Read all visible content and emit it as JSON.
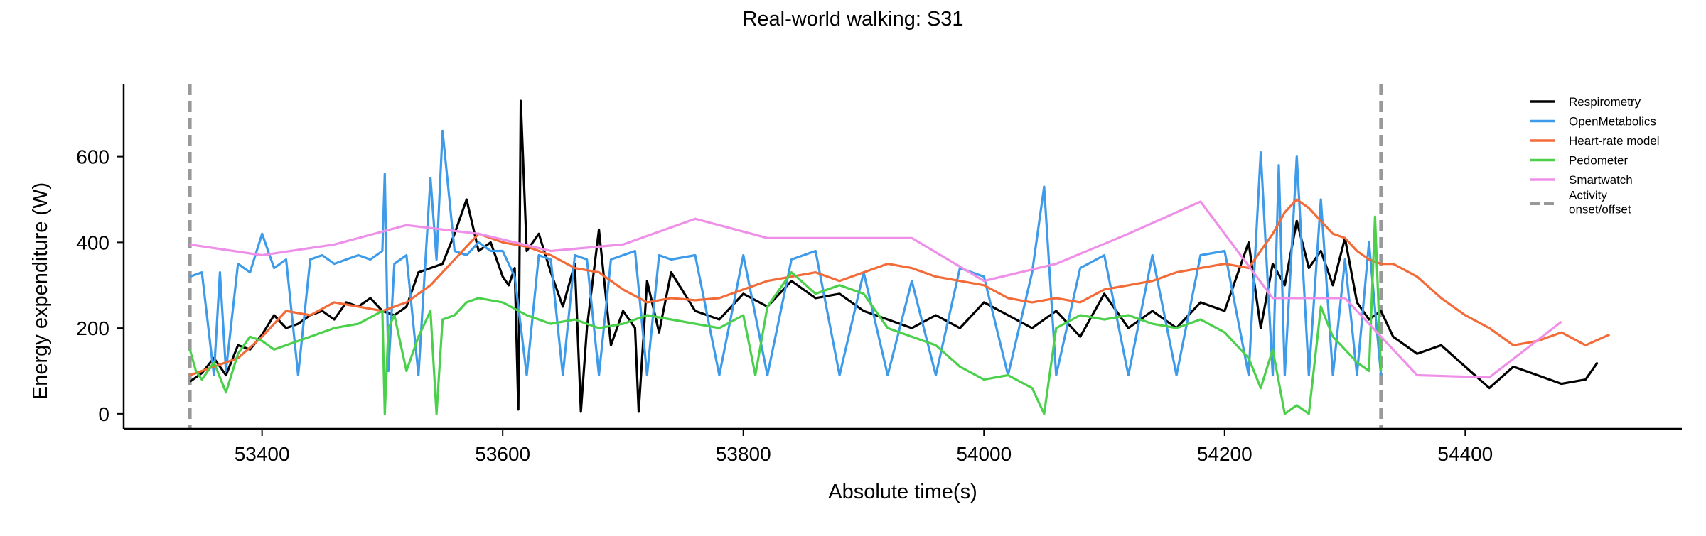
{
  "chart_data": {
    "type": "line",
    "title": "Real-world walking: S31",
    "xlabel": "Absolute time(s)",
    "ylabel": "Energy expenditure (W)",
    "xlim": [
      53285,
      54580
    ],
    "ylim": [
      -35,
      770
    ],
    "xticks": [
      53400,
      53600,
      53800,
      54000,
      54200,
      54400
    ],
    "yticks": [
      0,
      200,
      400,
      600
    ],
    "grid": false,
    "legend_position": "top-right",
    "activity_markers": {
      "label": "Activity\nonset/offset",
      "color": "#999999",
      "x": [
        53340,
        54330
      ]
    },
    "series": [
      {
        "name": "Respirometry",
        "color": "#000000",
        "x": [
          53340,
          53350,
          53360,
          53370,
          53380,
          53390,
          53400,
          53410,
          53420,
          53430,
          53440,
          53450,
          53460,
          53470,
          53480,
          53490,
          53500,
          53510,
          53520,
          53530,
          53540,
          53550,
          53560,
          53570,
          53580,
          53590,
          53600,
          53605,
          53610,
          53613,
          53615,
          53620,
          53630,
          53640,
          53650,
          53660,
          53665,
          53670,
          53680,
          53690,
          53700,
          53710,
          53713,
          53720,
          53730,
          53740,
          53760,
          53780,
          53800,
          53820,
          53840,
          53860,
          53880,
          53900,
          53920,
          53940,
          53960,
          53980,
          54000,
          54020,
          54040,
          54060,
          54080,
          54100,
          54120,
          54140,
          54160,
          54180,
          54200,
          54220,
          54230,
          54240,
          54250,
          54260,
          54270,
          54280,
          54290,
          54300,
          54310,
          54320,
          54330,
          54340,
          54360,
          54380,
          54400,
          54420,
          54440,
          54460,
          54480,
          54500,
          54510
        ],
        "values": [
          75,
          95,
          130,
          90,
          160,
          150,
          185,
          230,
          200,
          210,
          230,
          240,
          220,
          260,
          250,
          270,
          240,
          230,
          250,
          330,
          340,
          350,
          420,
          500,
          380,
          400,
          320,
          300,
          340,
          10,
          730,
          380,
          420,
          330,
          250,
          350,
          5,
          200,
          430,
          160,
          240,
          200,
          5,
          310,
          190,
          330,
          240,
          220,
          280,
          250,
          310,
          270,
          280,
          240,
          220,
          200,
          230,
          200,
          260,
          230,
          200,
          240,
          180,
          280,
          200,
          240,
          200,
          260,
          240,
          400,
          200,
          350,
          300,
          450,
          340,
          380,
          300,
          410,
          260,
          220,
          240,
          180,
          140,
          160,
          110,
          60,
          110,
          90,
          70,
          80,
          120
        ]
      },
      {
        "name": "OpenMetabolics",
        "color": "#3D9BE9",
        "x": [
          53340,
          53350,
          53360,
          53365,
          53370,
          53380,
          53390,
          53400,
          53410,
          53420,
          53430,
          53440,
          53450,
          53460,
          53470,
          53480,
          53490,
          53500,
          53502,
          53505,
          53510,
          53520,
          53530,
          53540,
          53545,
          53550,
          53560,
          53570,
          53580,
          53590,
          53600,
          53610,
          53620,
          53630,
          53640,
          53650,
          53660,
          53670,
          53680,
          53690,
          53700,
          53710,
          53720,
          53730,
          53740,
          53760,
          53780,
          53800,
          53820,
          53840,
          53860,
          53880,
          53900,
          53920,
          53940,
          53960,
          53980,
          54000,
          54020,
          54040,
          54050,
          54060,
          54080,
          54100,
          54120,
          54140,
          54160,
          54180,
          54200,
          54220,
          54230,
          54240,
          54245,
          54250,
          54260,
          54270,
          54280,
          54290,
          54300,
          54310,
          54320,
          54330
        ],
        "values": [
          320,
          330,
          90,
          330,
          100,
          350,
          330,
          420,
          340,
          360,
          90,
          360,
          370,
          350,
          360,
          370,
          360,
          380,
          560,
          100,
          350,
          370,
          90,
          550,
          360,
          660,
          380,
          370,
          400,
          380,
          380,
          320,
          90,
          370,
          360,
          90,
          370,
          360,
          90,
          360,
          370,
          380,
          90,
          370,
          360,
          370,
          90,
          370,
          90,
          360,
          380,
          90,
          330,
          90,
          310,
          90,
          340,
          320,
          90,
          330,
          530,
          90,
          340,
          370,
          90,
          370,
          90,
          370,
          380,
          90,
          610,
          90,
          580,
          90,
          600,
          90,
          500,
          90,
          360,
          90,
          400,
          90
        ]
      },
      {
        "name": "Heart-rate model",
        "color": "#F26B38",
        "x": [
          53340,
          53360,
          53380,
          53400,
          53420,
          53440,
          53460,
          53480,
          53500,
          53520,
          53540,
          53560,
          53580,
          53600,
          53620,
          53640,
          53660,
          53680,
          53700,
          53720,
          53740,
          53760,
          53780,
          53800,
          53820,
          53840,
          53860,
          53880,
          53900,
          53920,
          53940,
          53960,
          53980,
          54000,
          54020,
          54040,
          54060,
          54080,
          54100,
          54120,
          54140,
          54160,
          54180,
          54200,
          54220,
          54240,
          54250,
          54260,
          54270,
          54280,
          54290,
          54300,
          54310,
          54320,
          54330,
          54340,
          54360,
          54380,
          54400,
          54420,
          54440,
          54460,
          54480,
          54500,
          54520
        ],
        "values": [
          90,
          110,
          130,
          180,
          240,
          230,
          260,
          250,
          240,
          260,
          300,
          360,
          420,
          400,
          390,
          370,
          340,
          330,
          290,
          260,
          270,
          265,
          270,
          290,
          310,
          320,
          330,
          310,
          330,
          350,
          340,
          320,
          310,
          300,
          270,
          260,
          270,
          260,
          290,
          300,
          310,
          330,
          340,
          350,
          340,
          420,
          470,
          500,
          480,
          450,
          420,
          410,
          380,
          360,
          350,
          350,
          320,
          270,
          230,
          200,
          160,
          170,
          190,
          160,
          185
        ]
      },
      {
        "name": "Pedometer",
        "color": "#4BD04B",
        "x": [
          53340,
          53345,
          53350,
          53360,
          53370,
          53380,
          53390,
          53400,
          53410,
          53420,
          53440,
          53460,
          53480,
          53500,
          53502,
          53505,
          53510,
          53520,
          53530,
          53540,
          53545,
          53550,
          53560,
          53570,
          53580,
          53600,
          53620,
          53640,
          53660,
          53680,
          53700,
          53720,
          53740,
          53760,
          53780,
          53800,
          53810,
          53820,
          53840,
          53860,
          53880,
          53900,
          53920,
          53940,
          53960,
          53980,
          54000,
          54020,
          54040,
          54050,
          54060,
          54080,
          54100,
          54120,
          54140,
          54160,
          54180,
          54200,
          54220,
          54230,
          54240,
          54250,
          54260,
          54270,
          54280,
          54290,
          54300,
          54310,
          54320,
          54325,
          54330
        ],
        "values": [
          150,
          100,
          80,
          120,
          50,
          140,
          180,
          170,
          150,
          160,
          180,
          200,
          210,
          240,
          0,
          200,
          230,
          100,
          180,
          240,
          0,
          220,
          230,
          260,
          270,
          260,
          230,
          210,
          220,
          200,
          210,
          230,
          220,
          210,
          200,
          230,
          90,
          250,
          330,
          280,
          300,
          280,
          200,
          180,
          160,
          110,
          80,
          90,
          60,
          0,
          200,
          230,
          220,
          230,
          210,
          200,
          220,
          190,
          130,
          60,
          150,
          0,
          20,
          0,
          250,
          180,
          150,
          120,
          100,
          460,
          100
        ]
      },
      {
        "name": "Smartwatch",
        "color": "#EE8FE8",
        "x": [
          53340,
          53400,
          53460,
          53520,
          53580,
          53640,
          53700,
          53760,
          53820,
          53880,
          53940,
          54000,
          54060,
          54120,
          54180,
          54240,
          54300,
          54360,
          54420,
          54480
        ],
        "values": [
          395,
          370,
          395,
          440,
          420,
          380,
          395,
          455,
          410,
          410,
          410,
          310,
          350,
          420,
          495,
          270,
          270,
          90,
          85,
          215
        ]
      }
    ]
  }
}
